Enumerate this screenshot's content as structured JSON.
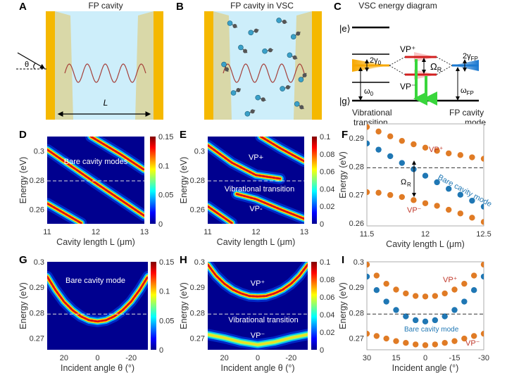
{
  "panels": {
    "A": {
      "label": "A",
      "title": "FP cavity",
      "length_label": "L",
      "angle_label": "θ"
    },
    "B": {
      "label": "B",
      "title": "FP cavity in VSC"
    },
    "C": {
      "label": "C",
      "title": "VSC energy diagram",
      "excited": "|e⟩",
      "ground": "|g⟩",
      "gamma0": "2γ",
      "gamma0_sub": "0",
      "omega0": "ω",
      "omega0_sub": "0",
      "vp_plus": "VP⁺",
      "vp_minus": "VP⁻",
      "rabi": "Ω",
      "rabi_sub": "R",
      "gamma_fp": "2γ",
      "gamma_fp_sub": "FP",
      "omega_fp": "ω",
      "omega_fp_sub": "FP",
      "vib_line1": "Vibrational",
      "vib_line2": "transition",
      "fp_line1": "FP cavity",
      "fp_line2": "mode"
    }
  },
  "colors": {
    "mirror": "#f5b800",
    "cavity": "#cdeefa",
    "wave": "#a5403a",
    "vp_orange": "#e07b25",
    "cavity_blue": "#1f77b4",
    "vp_text": "#c0392b",
    "green": "#39d63c"
  },
  "chart_data": [
    {
      "panel": "D",
      "type": "heatmap",
      "xlabel": "Cavity length L (μm)",
      "ylabel": "Energy (eV)",
      "xlim": [
        11,
        13
      ],
      "ylim": [
        0.25,
        0.31
      ],
      "xticks": [
        "11",
        "12",
        "13"
      ],
      "yticks": [
        "0.26",
        "0.28",
        "0.3"
      ],
      "colorbar": {
        "range": [
          0,
          0.15
        ],
        "ticks": [
          "0",
          "0.05",
          "0.1",
          "0.15"
        ]
      },
      "dashed_line_energy": 0.2795,
      "annotations": [
        "Bare cavity modes"
      ],
      "bands": [
        {
          "points": [
            [
              11,
              0.301
            ],
            [
              12,
              0.278
            ],
            [
              13,
              0.2555
            ]
          ],
          "peak": 0.15
        },
        {
          "points": [
            [
              11.9,
              0.31
            ],
            [
              12.5,
              0.298
            ],
            [
              13,
              0.287
            ]
          ],
          "peak": 0.15
        },
        {
          "points": [
            [
              11,
              0.264
            ],
            [
              11.7,
              0.2505
            ]
          ],
          "peak": 0.15
        }
      ]
    },
    {
      "panel": "E",
      "type": "heatmap",
      "xlabel": "Cavity length L (μm)",
      "ylabel": "Energy (eV)",
      "xlim": [
        11,
        13
      ],
      "ylim": [
        0.25,
        0.31
      ],
      "xticks": [
        "11",
        "12",
        "13"
      ],
      "yticks": [
        "0.26",
        "0.28",
        "0.3"
      ],
      "colorbar": {
        "range": [
          0,
          0.1
        ],
        "ticks": [
          "0",
          "0.02",
          "0.04",
          "0.06",
          "0.08",
          "0.1"
        ]
      },
      "dashed_line_energy": 0.2795,
      "annotations": [
        "VP+",
        "Vibrational transition",
        "VP-"
      ],
      "bands": [
        {
          "points": [
            [
              11,
              0.304
            ],
            [
              11.5,
              0.292
            ],
            [
              12,
              0.2835
            ],
            [
              12.5,
              0.281
            ]
          ],
          "peak": 0.1
        },
        {
          "points": [
            [
              12.1,
              0.31
            ],
            [
              12.5,
              0.302
            ],
            [
              13,
              0.293
            ]
          ],
          "peak": 0.1
        },
        {
          "points": [
            [
              11.6,
              0.2705
            ],
            [
              12,
              0.267
            ],
            [
              12.5,
              0.26
            ],
            [
              13,
              0.2535
            ]
          ],
          "peak": 0.09
        },
        {
          "points": [
            [
              11,
              0.262
            ],
            [
              11.5,
              0.2505
            ]
          ],
          "peak": 0.1
        }
      ]
    },
    {
      "panel": "F",
      "type": "scatter",
      "xlabel": "Cavity length L (μm)",
      "ylabel": "Energy (eV)",
      "xlim": [
        11.5,
        12.5
      ],
      "ylim": [
        0.259,
        0.295
      ],
      "xticks": [
        "11.5",
        "12",
        "12.5"
      ],
      "yticks": [
        "0.26",
        "0.27",
        "0.28",
        "0.29"
      ],
      "dashed_line_energy": 0.2795,
      "labels": {
        "vp_plus": "VP⁺",
        "vp_minus": "VP⁻",
        "bare": "Bare cavity mode",
        "rabi": "Ω",
        "rabi_sub": "R"
      },
      "x": [
        11.5,
        11.6,
        11.7,
        11.8,
        11.9,
        12.0,
        12.1,
        12.2,
        12.3,
        12.4,
        12.5
      ],
      "series": [
        {
          "name": "VP⁺",
          "color": "#e07b25",
          "values": [
            0.2939,
            0.2923,
            0.2906,
            0.289,
            0.2878,
            0.2866,
            0.2855,
            0.2846,
            0.284,
            0.2832,
            0.2827
          ]
        },
        {
          "name": "Bare cavity mode",
          "color": "#1f77b4",
          "values": [
            0.2881,
            0.2859,
            0.2836,
            0.2812,
            0.279,
            0.2767,
            0.2744,
            0.2721,
            0.27,
            0.2679,
            0.2658
          ]
        },
        {
          "name": "VP⁻",
          "color": "#e07b25",
          "values": [
            0.2709,
            0.2707,
            0.2699,
            0.2692,
            0.2681,
            0.267,
            0.2661,
            0.2647,
            0.2634,
            0.2619,
            0.2604
          ]
        }
      ]
    },
    {
      "panel": "G",
      "type": "heatmap",
      "xlabel": "Incident angle θ (°)",
      "ylabel": "Energy (eV)",
      "xlim": [
        30,
        -30
      ],
      "ylim": [
        0.2655,
        0.3
      ],
      "xticks": [
        "20",
        "0",
        "-20"
      ],
      "yticks": [
        "0.27",
        "0.28",
        "0.29",
        "0.3"
      ],
      "colorbar": {
        "range": [
          0,
          0.15
        ],
        "ticks": [
          "0",
          "0.05",
          "0.1",
          "0.15"
        ]
      },
      "dashed_line_energy": 0.2795,
      "annotations": [
        "Bare cavity mode"
      ],
      "bands": [
        {
          "points": [
            [
              30,
              0.2942
            ],
            [
              25,
              0.2889
            ],
            [
              20,
              0.2844
            ],
            [
              15,
              0.2811
            ],
            [
              10,
              0.2786
            ],
            [
              5,
              0.2771
            ],
            [
              0,
              0.2766
            ],
            [
              -5,
              0.2771
            ],
            [
              -10,
              0.2786
            ],
            [
              -15,
              0.2811
            ],
            [
              -20,
              0.2844
            ],
            [
              -25,
              0.2889
            ],
            [
              -30,
              0.2942
            ]
          ],
          "peak": 0.15
        }
      ]
    },
    {
      "panel": "H",
      "type": "heatmap",
      "xlabel": "Incident angle θ (°)",
      "ylabel": "Energy (eV)",
      "xlim": [
        30,
        -30
      ],
      "ylim": [
        0.2655,
        0.3
      ],
      "xticks": [
        "20",
        "0",
        "-20"
      ],
      "yticks": [
        "0.27",
        "0.28",
        "0.29",
        "0.3"
      ],
      "colorbar": {
        "range": [
          0,
          0.1
        ],
        "ticks": [
          "0",
          "0.02",
          "0.04",
          "0.06",
          "0.08",
          "0.1"
        ]
      },
      "dashed_line_energy": 0.2795,
      "annotations": [
        "VP⁺",
        "Vibrational transition",
        "VP⁻"
      ],
      "bands": [
        {
          "points": [
            [
              30,
              0.2989
            ],
            [
              25,
              0.2946
            ],
            [
              20,
              0.2914
            ],
            [
              15,
              0.2891
            ],
            [
              10,
              0.2876
            ],
            [
              5,
              0.2866
            ],
            [
              0,
              0.2864
            ],
            [
              -5,
              0.2866
            ],
            [
              -10,
              0.2876
            ],
            [
              -15,
              0.2891
            ],
            [
              -20,
              0.2914
            ],
            [
              -25,
              0.2946
            ],
            [
              -30,
              0.2989
            ]
          ],
          "peak": 0.1
        },
        {
          "points": [
            [
              30,
              0.2715
            ],
            [
              20,
              0.2702
            ],
            [
              10,
              0.2685
            ],
            [
              0,
              0.2675
            ],
            [
              -10,
              0.2685
            ],
            [
              -20,
              0.2702
            ],
            [
              -30,
              0.2715
            ]
          ],
          "peak": 0.06
        }
      ]
    },
    {
      "panel": "I",
      "type": "scatter",
      "xlabel": "Incident angle (°)",
      "ylabel": "Energy (eV)",
      "xlim": [
        30,
        -30
      ],
      "ylim": [
        0.2655,
        0.3
      ],
      "xticks": [
        "30",
        "15",
        "0",
        "-15",
        "-30"
      ],
      "yticks": [
        "0.27",
        "0.28",
        "0.29",
        "0.3"
      ],
      "dashed_line_energy": 0.2795,
      "labels": {
        "vp_plus": "VP⁺",
        "vp_minus": "VP⁻",
        "bare": "Bare cavity mode"
      },
      "x": [
        30,
        25,
        20,
        15,
        10,
        5,
        0,
        -5,
        -10,
        -15,
        -20,
        -25,
        -30
      ],
      "series": [
        {
          "name": "VP⁺",
          "color": "#e07b25",
          "values": [
            0.2989,
            0.2946,
            0.2914,
            0.2891,
            0.2876,
            0.2866,
            0.2864,
            0.2866,
            0.2876,
            0.2891,
            0.2914,
            0.2946,
            0.2989
          ]
        },
        {
          "name": "Bare cavity mode",
          "color": "#1f77b4",
          "values": [
            0.2942,
            0.2889,
            0.2844,
            0.2811,
            0.2786,
            0.2771,
            0.2766,
            0.2771,
            0.2786,
            0.2811,
            0.2844,
            0.2889,
            0.2942
          ]
        },
        {
          "name": "VP⁻",
          "color": "#e07b25",
          "values": [
            0.2718,
            0.2709,
            0.2699,
            0.2689,
            0.2682,
            0.2676,
            0.2673,
            0.2676,
            0.2682,
            0.2689,
            0.2699,
            0.2709,
            0.2718
          ]
        }
      ]
    }
  ]
}
